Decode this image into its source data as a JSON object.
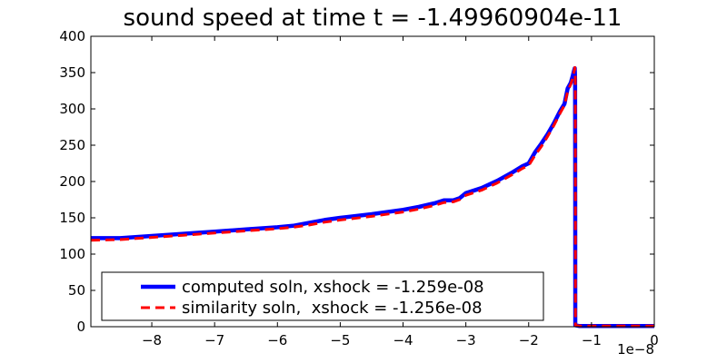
{
  "chart_data": {
    "type": "line",
    "title": "sound speed at time t = -1.49960904e-11",
    "xlabel": "",
    "ylabel": "",
    "xlim": [
      -8.97e-08,
      0
    ],
    "ylim": [
      0,
      400
    ],
    "x_offset_label": "1e−8",
    "x_ticks": [
      -8e-08,
      -7e-08,
      -6e-08,
      -5e-08,
      -4e-08,
      -3e-08,
      -2e-08,
      -1e-08,
      0
    ],
    "x_tick_labels": [
      "−8",
      "−7",
      "−6",
      "−5",
      "−4",
      "−3",
      "−2",
      "−1",
      "0"
    ],
    "y_ticks": [
      0,
      50,
      100,
      150,
      200,
      250,
      300,
      350,
      400
    ],
    "y_tick_labels": [
      "0",
      "50",
      "100",
      "150",
      "200",
      "250",
      "300",
      "350",
      "400"
    ],
    "grid": false,
    "legend_position": "lower-center",
    "series": [
      {
        "name": "computed soln, xshock = -1.259e-08",
        "color": "#0000ff",
        "style": "solid",
        "x": [
          -8.97e-08,
          -8.5e-08,
          -8e-08,
          -7.5e-08,
          -7e-08,
          -6.5e-08,
          -6e-08,
          -5.75e-08,
          -5.5e-08,
          -5.25e-08,
          -5e-08,
          -4.5e-08,
          -4e-08,
          -3.75e-08,
          -3.5e-08,
          -3.35e-08,
          -3.2e-08,
          -3.1e-08,
          -3e-08,
          -2.75e-08,
          -2.5e-08,
          -2.25e-08,
          -2.1e-08,
          -2e-08,
          -1.9e-08,
          -1.8e-08,
          -1.7e-08,
          -1.6e-08,
          -1.5e-08,
          -1.43e-08,
          -1.38e-08,
          -1.33e-08,
          -1.3e-08,
          -1.28e-08,
          -1.266e-08,
          -1.261e-08,
          -1.259e-08,
          -1.258e-08,
          -1.2e-08,
          -1e-08,
          -5e-09,
          0
        ],
        "y": [
          122,
          122,
          125,
          128,
          131,
          134,
          137,
          139,
          143,
          147,
          150,
          155,
          161,
          165,
          170,
          174,
          174,
          177,
          184,
          191,
          201,
          213,
          221,
          225,
          240,
          252,
          265,
          280,
          297,
          307,
          328,
          336,
          345,
          352,
          356,
          340,
          180,
          2,
          1,
          1,
          1,
          1
        ]
      },
      {
        "name": "similarity soln,  xshock = -1.256e-08",
        "color": "#ff0000",
        "style": "dashed",
        "x": [
          -8.97e-08,
          -8.5e-08,
          -8e-08,
          -7.5e-08,
          -7e-08,
          -6.5e-08,
          -6e-08,
          -5.75e-08,
          -5.5e-08,
          -5.25e-08,
          -5e-08,
          -4.5e-08,
          -4e-08,
          -3.75e-08,
          -3.5e-08,
          -3.35e-08,
          -3.2e-08,
          -3.1e-08,
          -3e-08,
          -2.75e-08,
          -2.5e-08,
          -2.25e-08,
          -2.1e-08,
          -2e-08,
          -1.9e-08,
          -1.8e-08,
          -1.7e-08,
          -1.6e-08,
          -1.5e-08,
          -1.43e-08,
          -1.38e-08,
          -1.33e-08,
          -1.3e-08,
          -1.28e-08,
          -1.265e-08,
          -1.258e-08,
          -1.256e-08,
          -1.255e-08,
          -1.2e-08,
          -1e-08,
          -5e-09,
          0
        ],
        "y": [
          119,
          120,
          123,
          126,
          129,
          132,
          135,
          137,
          140,
          144,
          147,
          152,
          158,
          162,
          167,
          171,
          172,
          175,
          181,
          188,
          198,
          210,
          218,
          222,
          236,
          248,
          262,
          277,
          294,
          305,
          324,
          334,
          342,
          350,
          357,
          345,
          180,
          2,
          1,
          1,
          1,
          1
        ]
      }
    ]
  }
}
